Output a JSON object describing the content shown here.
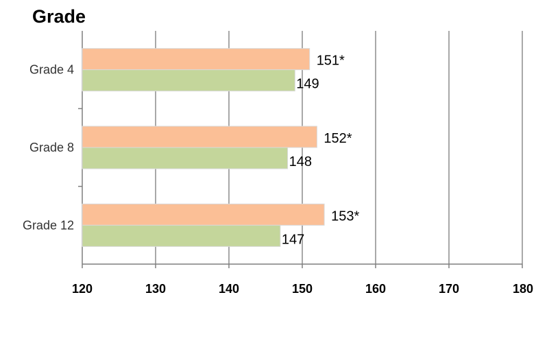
{
  "title": "Grade",
  "chart_data": {
    "type": "bar",
    "orientation": "horizontal",
    "title": "Grade",
    "categories": [
      "Grade 4",
      "Grade 8",
      "Grade 12"
    ],
    "series": [
      {
        "color": "#fbbf96",
        "values": [
          151,
          152,
          153
        ],
        "labels": [
          "151*",
          "152*",
          "153*"
        ]
      },
      {
        "color": "#c4d69b",
        "values": [
          149,
          148,
          147
        ],
        "labels": [
          "149",
          "148",
          "147"
        ]
      }
    ],
    "xlim": [
      120,
      180
    ],
    "xticks": [
      "120",
      "130",
      "140",
      "150",
      "160",
      "170",
      "180"
    ],
    "grid": "vertical",
    "legend": "none",
    "xlabel": "",
    "ylabel": ""
  }
}
